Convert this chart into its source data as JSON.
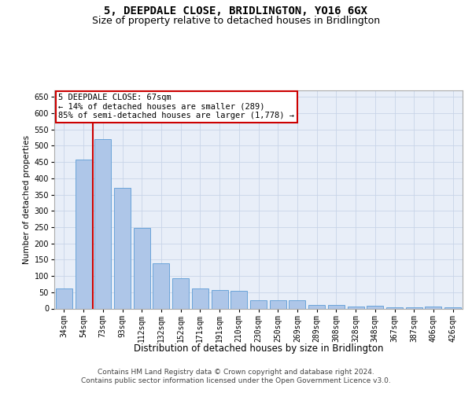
{
  "title": "5, DEEPDALE CLOSE, BRIDLINGTON, YO16 6GX",
  "subtitle": "Size of property relative to detached houses in Bridlington",
  "xlabel": "Distribution of detached houses by size in Bridlington",
  "ylabel": "Number of detached properties",
  "categories": [
    "34sqm",
    "54sqm",
    "73sqm",
    "93sqm",
    "112sqm",
    "132sqm",
    "152sqm",
    "171sqm",
    "191sqm",
    "210sqm",
    "230sqm",
    "250sqm",
    "269sqm",
    "289sqm",
    "308sqm",
    "328sqm",
    "348sqm",
    "367sqm",
    "387sqm",
    "406sqm",
    "426sqm"
  ],
  "values": [
    62,
    458,
    520,
    370,
    248,
    140,
    93,
    62,
    57,
    55,
    26,
    26,
    26,
    11,
    12,
    6,
    8,
    3,
    3,
    5,
    3
  ],
  "bar_color": "#aec6e8",
  "bar_edge_color": "#5b9bd5",
  "vline_x_index": 2,
  "vline_color": "#cc0000",
  "annotation_text_line1": "5 DEEPDALE CLOSE: 67sqm",
  "annotation_text_line2": "← 14% of detached houses are smaller (289)",
  "annotation_text_line3": "85% of semi-detached houses are larger (1,778) →",
  "annotation_box_color": "#ffffff",
  "annotation_box_edge": "#cc0000",
  "ylim": [
    0,
    670
  ],
  "yticks": [
    0,
    50,
    100,
    150,
    200,
    250,
    300,
    350,
    400,
    450,
    500,
    550,
    600,
    650
  ],
  "plot_bg_color": "#e8eef8",
  "grid_color": "#c8d4e8",
  "footer_line1": "Contains HM Land Registry data © Crown copyright and database right 2024.",
  "footer_line2": "Contains public sector information licensed under the Open Government Licence v3.0.",
  "title_fontsize": 10,
  "subtitle_fontsize": 9,
  "xlabel_fontsize": 8.5,
  "ylabel_fontsize": 7.5,
  "tick_fontsize": 7,
  "footer_fontsize": 6.5,
  "annotation_fontsize": 7.5
}
